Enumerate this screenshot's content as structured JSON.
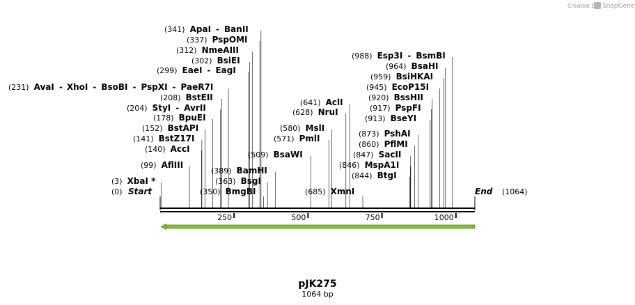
{
  "credit": {
    "prefix": "Created by",
    "brand": "SnapGene"
  },
  "plasmid": {
    "name": "pJK275",
    "length_label": "1064 bp",
    "length": 1064
  },
  "ruler": {
    "ticks": [
      250,
      500,
      750,
      1000
    ]
  },
  "ends": [
    {
      "label": "Start",
      "position": 0,
      "pos_label": "(0)"
    },
    {
      "label": "End",
      "position": 1064,
      "pos_label": "(1064)"
    }
  ],
  "feature": {
    "name": "primer-arrow",
    "start": 3,
    "end": 1064,
    "direction": "reverse",
    "color": "#7ac81e"
  },
  "sites": [
    {
      "pos_label": "(3)",
      "names": [
        "XbaI *"
      ],
      "position": 3
    },
    {
      "pos_label": "(99)",
      "names": [
        "AflIII"
      ],
      "position": 99
    },
    {
      "pos_label": "(140)",
      "names": [
        "AccI"
      ],
      "position": 140
    },
    {
      "pos_label": "(141)",
      "names": [
        "BstZ17I"
      ],
      "position": 141
    },
    {
      "pos_label": "(152)",
      "names": [
        "BstAPI"
      ],
      "position": 152
    },
    {
      "pos_label": "(178)",
      "names": [
        "BpuEI"
      ],
      "position": 178
    },
    {
      "pos_label": "(204)",
      "names": [
        "StyI",
        "AvrII"
      ],
      "position": 204
    },
    {
      "pos_label": "(208)",
      "names": [
        "BstEII"
      ],
      "position": 208
    },
    {
      "pos_label": "(231)",
      "names": [
        "AvaI",
        "XhoI",
        "BsoBI",
        "PspXI",
        "PaeR7I"
      ],
      "position": 231
    },
    {
      "pos_label": "(299)",
      "names": [
        "EaeI",
        "EagI"
      ],
      "position": 299
    },
    {
      "pos_label": "(302)",
      "names": [
        "BsiEI"
      ],
      "position": 302
    },
    {
      "pos_label": "(312)",
      "names": [
        "NmeAIII"
      ],
      "position": 312
    },
    {
      "pos_label": "(337)",
      "names": [
        "PspOMI"
      ],
      "position": 337
    },
    {
      "pos_label": "(341)",
      "names": [
        "ApaI",
        "BanII"
      ],
      "position": 341
    },
    {
      "pos_label": "(350)",
      "names": [
        "BmgBI"
      ],
      "position": 350
    },
    {
      "pos_label": "(363)",
      "names": [
        "BsgI"
      ],
      "position": 363
    },
    {
      "pos_label": "(389)",
      "names": [
        "BamHI"
      ],
      "position": 389
    },
    {
      "pos_label": "(509)",
      "names": [
        "BsaWI"
      ],
      "position": 509
    },
    {
      "pos_label": "(571)",
      "names": [
        "PmlI"
      ],
      "position": 571
    },
    {
      "pos_label": "(580)",
      "names": [
        "MslI"
      ],
      "position": 580
    },
    {
      "pos_label": "(628)",
      "names": [
        "NruI"
      ],
      "position": 628
    },
    {
      "pos_label": "(641)",
      "names": [
        "AclI"
      ],
      "position": 641
    },
    {
      "pos_label": "(685)",
      "names": [
        "XmnI"
      ],
      "position": 685
    },
    {
      "pos_label": "(844)",
      "names": [
        "BtgI"
      ],
      "position": 844
    },
    {
      "pos_label": "(846)",
      "names": [
        "MspA1I"
      ],
      "position": 846
    },
    {
      "pos_label": "(847)",
      "names": [
        "SacII"
      ],
      "position": 847
    },
    {
      "pos_label": "(860)",
      "names": [
        "PflMI"
      ],
      "position": 860
    },
    {
      "pos_label": "(873)",
      "names": [
        "PshAI"
      ],
      "position": 873
    },
    {
      "pos_label": "(913)",
      "names": [
        "BseYI"
      ],
      "position": 913
    },
    {
      "pos_label": "(917)",
      "names": [
        "PspFI"
      ],
      "position": 917
    },
    {
      "pos_label": "(920)",
      "names": [
        "BssHII"
      ],
      "position": 920
    },
    {
      "pos_label": "(945)",
      "names": [
        "EcoP15I"
      ],
      "position": 945
    },
    {
      "pos_label": "(959)",
      "names": [
        "BsiHKAI"
      ],
      "position": 959
    },
    {
      "pos_label": "(964)",
      "names": [
        "BsaHI"
      ],
      "position": 964
    },
    {
      "pos_label": "(988)",
      "names": [
        "Esp3I",
        "BsmBI"
      ],
      "position": 988
    }
  ]
}
